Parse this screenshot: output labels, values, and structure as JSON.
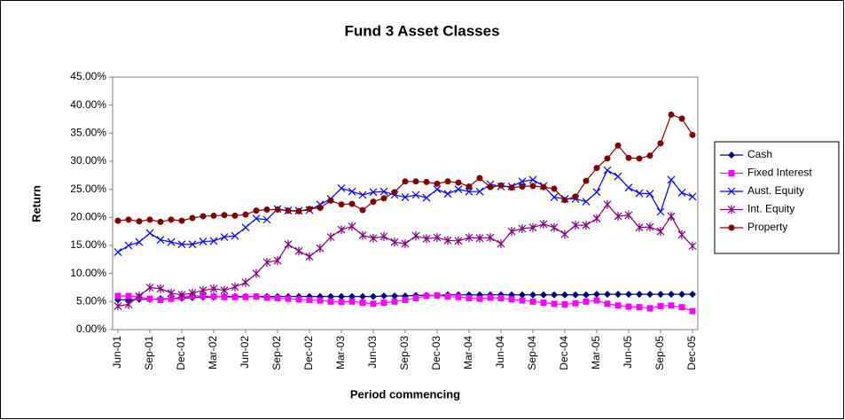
{
  "chart_data": {
    "type": "line",
    "title": "Fund 3 Asset Classes",
    "x_label": "Period commencing",
    "y_label": "Return",
    "categories": [
      "Jun-01",
      null,
      null,
      "Sep-01",
      null,
      null,
      "Dec-01",
      null,
      null,
      "Mar-02",
      null,
      null,
      "Jun-02",
      null,
      null,
      "Sep-02",
      null,
      null,
      "Dec-02",
      null,
      null,
      "Mar-03",
      null,
      null,
      "Jun-03",
      null,
      null,
      "Sep-03",
      null,
      null,
      "Dec-03",
      null,
      null,
      "Mar-04",
      null,
      null,
      "Jun-04",
      null,
      null,
      "Sep-04",
      null,
      null,
      "Dec-04",
      null,
      null,
      "Mar-05",
      null,
      null,
      "Jun-05",
      null,
      null,
      "Sep-05",
      null,
      null,
      "Dec-05"
    ],
    "ylim": [
      0,
      45
    ],
    "yticks": [
      {
        "value": 0,
        "label": "0.00%"
      },
      {
        "value": 5,
        "label": "5.00%"
      },
      {
        "value": 10,
        "label": "10.00%"
      },
      {
        "value": 15,
        "label": "15.00%"
      },
      {
        "value": 20,
        "label": "20.00%"
      },
      {
        "value": 25,
        "label": "25.00%"
      },
      {
        "value": 30,
        "label": "30.00%"
      },
      {
        "value": 35,
        "label": "35.00%"
      },
      {
        "value": 40,
        "label": "40.00%"
      },
      {
        "value": 45,
        "label": "45.00%"
      }
    ],
    "grid": false,
    "legend": "right",
    "series": [
      {
        "name": "Cash",
        "color": "#000080",
        "marker": "diamond",
        "values": [
          5.3,
          5.3,
          5.4,
          5.4,
          5.5,
          5.5,
          5.6,
          5.7,
          5.8,
          5.8,
          5.9,
          5.9,
          5.9,
          5.9,
          5.9,
          5.9,
          5.9,
          5.9,
          5.9,
          5.9,
          5.9,
          5.9,
          5.9,
          5.9,
          5.9,
          6.0,
          6.0,
          6.0,
          6.1,
          6.1,
          6.1,
          6.2,
          6.2,
          6.2,
          6.2,
          6.2,
          6.2,
          6.2,
          6.2,
          6.2,
          6.2,
          6.2,
          6.2,
          6.2,
          6.2,
          6.3,
          6.3,
          6.3,
          6.3,
          6.3,
          6.3,
          6.3,
          6.3,
          6.3,
          6.3
        ]
      },
      {
        "name": "Fixed Interest",
        "color": "#ff00ff",
        "marker": "square",
        "values": [
          6.0,
          6.0,
          5.8,
          5.5,
          5.3,
          5.5,
          5.8,
          6.0,
          6.0,
          5.9,
          5.8,
          5.8,
          5.8,
          5.9,
          5.7,
          5.6,
          5.5,
          5.4,
          5.3,
          5.2,
          5.0,
          4.9,
          5.0,
          4.8,
          4.6,
          4.8,
          5.0,
          5.3,
          5.6,
          6.0,
          6.1,
          5.9,
          5.8,
          5.6,
          5.5,
          5.7,
          5.6,
          5.4,
          5.2,
          5.0,
          4.8,
          4.6,
          4.5,
          4.7,
          5.0,
          5.2,
          4.6,
          4.3,
          4.1,
          4.0,
          3.8,
          4.2,
          4.3,
          4.0,
          3.3
        ]
      },
      {
        "name": "Aust. Equity",
        "color": "#0000ff",
        "marker": "x",
        "values": [
          13.8,
          15,
          15.6,
          17.2,
          16,
          15.6,
          15.2,
          15.2,
          15.7,
          15.8,
          16.5,
          16.7,
          18.2,
          19.8,
          19.6,
          21.5,
          21.2,
          21.2,
          21.3,
          22.3,
          23.3,
          25.2,
          24.6,
          24.0,
          24.5,
          24.6,
          24.0,
          23.6,
          24.0,
          23.5,
          25.0,
          24.2,
          25.0,
          24.6,
          24.6,
          25.9,
          25.5,
          25.5,
          26.4,
          26.7,
          25.6,
          23.6,
          23.3,
          23.3,
          22.8,
          24.5,
          28.4,
          27.3,
          25.3,
          24.3,
          24.2,
          21.0,
          26.7,
          24.4,
          23.7
        ]
      },
      {
        "name": "Int. Equity",
        "color": "#800080",
        "marker": "star",
        "values": [
          4.2,
          4.5,
          6.0,
          7.5,
          7.3,
          6.5,
          6.2,
          6.5,
          7.0,
          7.3,
          7.0,
          7.6,
          8.4,
          10.0,
          12.0,
          12.3,
          15.2,
          14.0,
          13.0,
          14.5,
          16.5,
          17.8,
          18.4,
          16.8,
          16.3,
          16.6,
          15.6,
          15.3,
          16.7,
          16.2,
          16.4,
          15.9,
          15.8,
          16.4,
          16.3,
          16.4,
          15.3,
          17.5,
          18.0,
          18.2,
          18.8,
          18.2,
          17.0,
          18.6,
          18.6,
          19.8,
          22.3,
          20.2,
          20.4,
          18.2,
          18.3,
          17.5,
          20.2,
          16.9,
          14.9
        ]
      },
      {
        "name": "Property",
        "color": "#800000",
        "marker": "circle",
        "values": [
          19.4,
          19.6,
          19.3,
          19.6,
          19.2,
          19.6,
          19.4,
          19.9,
          20.2,
          20.3,
          20.4,
          20.3,
          20.5,
          21.2,
          21.4,
          21.4,
          21.2,
          21.1,
          21.5,
          21.7,
          23.0,
          22.3,
          22.4,
          21.3,
          22.8,
          23.4,
          24.5,
          26.4,
          26.4,
          26.3,
          26.0,
          26.4,
          26.2,
          25.5,
          27.0,
          25.4,
          25.7,
          25.3,
          25.5,
          25.6,
          25.4,
          25.1,
          23.1,
          23.7,
          26.5,
          28.8,
          30.5,
          32.8,
          30.6,
          30.5,
          31.0,
          33.2,
          38.3,
          37.6,
          34.7
        ]
      }
    ]
  }
}
